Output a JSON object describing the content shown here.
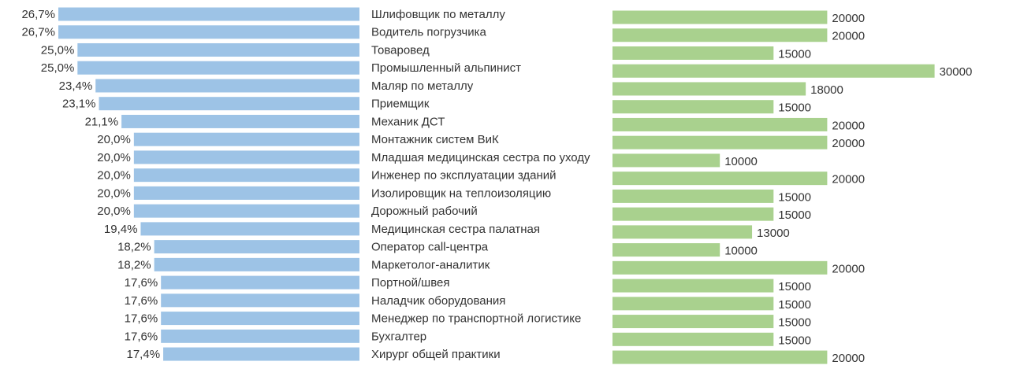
{
  "chart_data": {
    "type": "bar",
    "orientation": "horizontal",
    "categories": [
      "Шлифовщик по металлу",
      "Водитель погрузчика",
      "Товаровед",
      "Промышленный альпинист",
      "Маляр по металлу",
      "Приемщик",
      "Механик ДСТ",
      "Монтажник систем ВиК",
      "Младшая медицинская сестра по уходу",
      "Инженер по эксплуатации зданий",
      "Изолировщик на теплоизоляцию",
      "Дорожный рабочий",
      "Медицинская сестра палатная",
      "Оператор call-центра",
      "Маркетолог-аналитик",
      "Портной/швея",
      "Наладчик оборудования",
      "Менеджер по транспортной логистике",
      "Бухгалтер",
      "Хирург общей практики"
    ],
    "series": [
      {
        "name": "percent",
        "color": "#9dc3e6",
        "direction": "left",
        "values": [
          26.7,
          26.7,
          25.0,
          25.0,
          23.4,
          23.1,
          21.1,
          20.0,
          20.0,
          20.0,
          20.0,
          20.0,
          19.4,
          18.2,
          18.2,
          17.6,
          17.6,
          17.6,
          17.6,
          17.4
        ],
        "labels": [
          "26,7%",
          "26,7%",
          "25,0%",
          "25,0%",
          "23,4%",
          "23,1%",
          "21,1%",
          "20,0%",
          "20,0%",
          "20,0%",
          "20,0%",
          "20,0%",
          "19,4%",
          "18,2%",
          "18,2%",
          "17,6%",
          "17,6%",
          "17,6%",
          "17,6%",
          "17,4%"
        ]
      },
      {
        "name": "salary",
        "color": "#a9d18e",
        "direction": "right",
        "values": [
          20000,
          20000,
          15000,
          30000,
          18000,
          15000,
          20000,
          20000,
          10000,
          20000,
          15000,
          15000,
          13000,
          10000,
          20000,
          15000,
          15000,
          15000,
          15000,
          20000
        ],
        "labels": [
          "20000",
          "20000",
          "15000",
          "30000",
          "18000",
          "15000",
          "20000",
          "20000",
          "10000",
          "20000",
          "15000",
          "15000",
          "13000",
          "10000",
          "20000",
          "15000",
          "15000",
          "15000",
          "15000",
          "20000"
        ]
      }
    ],
    "title": "",
    "xlabel": "",
    "ylabel": "",
    "grid": false
  }
}
